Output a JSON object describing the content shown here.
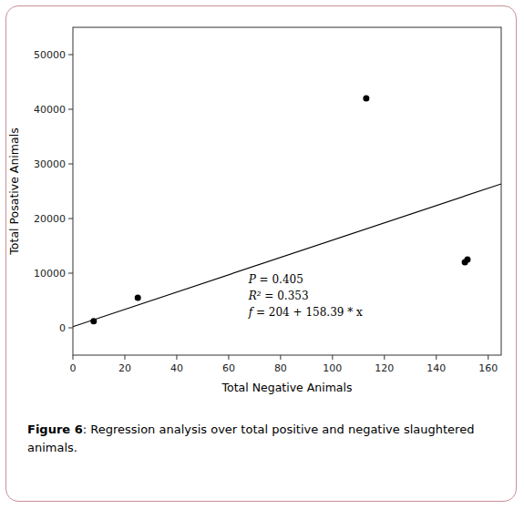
{
  "chart_data": {
    "type": "scatter",
    "x_label": "Total Negative Animals",
    "y_label": "Total Posative Animals",
    "annotations": [
      "P = 0.405",
      "R² = 0.353",
      "f = 204 + 158.39 * x"
    ],
    "caption_label": "Figure 6",
    "caption": ": Regression analysis over total positive and negative slaughtered animals.",
    "series": [
      {
        "type": "scatter",
        "color": "black",
        "x": [
          8,
          25,
          113,
          151,
          152
        ],
        "values": [
          1200,
          5500,
          42000,
          12000,
          12500
        ]
      },
      {
        "type": "line",
        "color": "black",
        "x": [
          0,
          165
        ],
        "values": [
          204,
          26338.35
        ]
      }
    ],
    "xlim": [
      0,
      165
    ],
    "ylim": [
      -5000,
      55000
    ],
    "xticks": [
      0,
      20,
      40,
      60,
      80,
      100,
      120,
      140,
      160
    ],
    "yticks": [
      0,
      10000,
      20000,
      30000,
      40000,
      50000
    ],
    "grid": false
  }
}
